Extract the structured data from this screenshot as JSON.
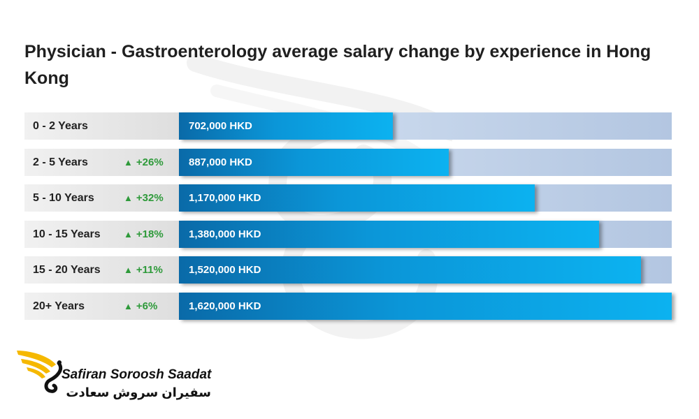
{
  "chart_data": {
    "type": "bar",
    "title": "Physician - Gastroenterology average salary change by experience in Hong Kong",
    "categories": [
      "0 - 2 Years",
      "2 - 5 Years",
      "5 - 10 Years",
      "10 - 15 Years",
      "15 - 20 Years",
      "20+ Years"
    ],
    "values": [
      702000,
      887000,
      1170000,
      1380000,
      1520000,
      1620000
    ],
    "value_labels": [
      "702,000 HKD",
      "887,000 HKD",
      "1,170,000 HKD",
      "1,380,000 HKD",
      "1,520,000 HKD",
      "1,620,000 HKD"
    ],
    "changes": [
      "",
      "+26%",
      "+32%",
      "+18%",
      "+11%",
      "+6%"
    ],
    "unit": "HKD",
    "xlim": [
      0,
      1620000
    ],
    "orientation": "horizontal",
    "grid": false,
    "colors": {
      "bar": "#0b96d8",
      "track": "#c3d3ea",
      "increase": "#2e9a3a"
    }
  },
  "brand": {
    "name_en": "Safiran Soroosh Saadat",
    "name_fa": "سفیران سروش سعادت",
    "logo_color": "#f5b800",
    "icon": "wing-swan-logo-icon"
  }
}
